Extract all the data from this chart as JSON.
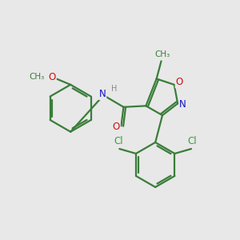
{
  "bg_color": "#e8e8e8",
  "bond_color": "#3a7d3a",
  "bond_width": 1.6,
  "atom_colors": {
    "C": "#3a7d3a",
    "N": "#1010cc",
    "O": "#cc1010",
    "Cl": "#3a9e3a",
    "H": "#888888"
  },
  "font_size": 8.5
}
